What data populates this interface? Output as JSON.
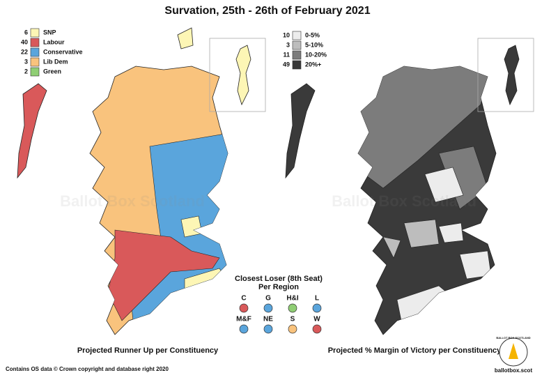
{
  "title": "Survation, 25th - 26th of February 2021",
  "watermark": "Ballot Box Scotland",
  "left_map": {
    "caption": "Projected Runner Up per Constituency",
    "legend": [
      {
        "count": 6,
        "label": "SNP",
        "color": "#fdf6b5"
      },
      {
        "count": 40,
        "label": "Labour",
        "color": "#d9595a"
      },
      {
        "count": 22,
        "label": "Conservative",
        "color": "#5aa5dc"
      },
      {
        "count": 3,
        "label": "Lib Dem",
        "color": "#f9c37d"
      },
      {
        "count": 2,
        "label": "Green",
        "color": "#8fce74"
      }
    ]
  },
  "right_map": {
    "caption": "Projected % Margin of Victory per Constituency",
    "legend": [
      {
        "count": 10,
        "label": "0-5%",
        "color": "#ececec"
      },
      {
        "count": 3,
        "label": "5-10%",
        "color": "#bdbdbd"
      },
      {
        "count": 11,
        "label": "10-20%",
        "color": "#7c7c7c"
      },
      {
        "count": 49,
        "label": "20%+",
        "color": "#3a3a3a"
      }
    ]
  },
  "closest_loser": {
    "title": "Closest Loser (8th Seat)",
    "subtitle": "Per Region",
    "regions": [
      {
        "region": "C",
        "color": "#d9595a"
      },
      {
        "region": "G",
        "color": "#5aa5dc"
      },
      {
        "region": "H&I",
        "color": "#8fce74"
      },
      {
        "region": "L",
        "color": "#5aa5dc"
      },
      {
        "region": "M&F",
        "color": "#5aa5dc"
      },
      {
        "region": "NE",
        "color": "#5aa5dc"
      },
      {
        "region": "S",
        "color": "#f9c37d"
      },
      {
        "region": "W",
        "color": "#d9595a"
      }
    ]
  },
  "credit": "Contains OS data © Crown copyright and database right 2020",
  "website": "ballotbox.scot",
  "logo_text": "BALLOT BOX SCOTLAND"
}
